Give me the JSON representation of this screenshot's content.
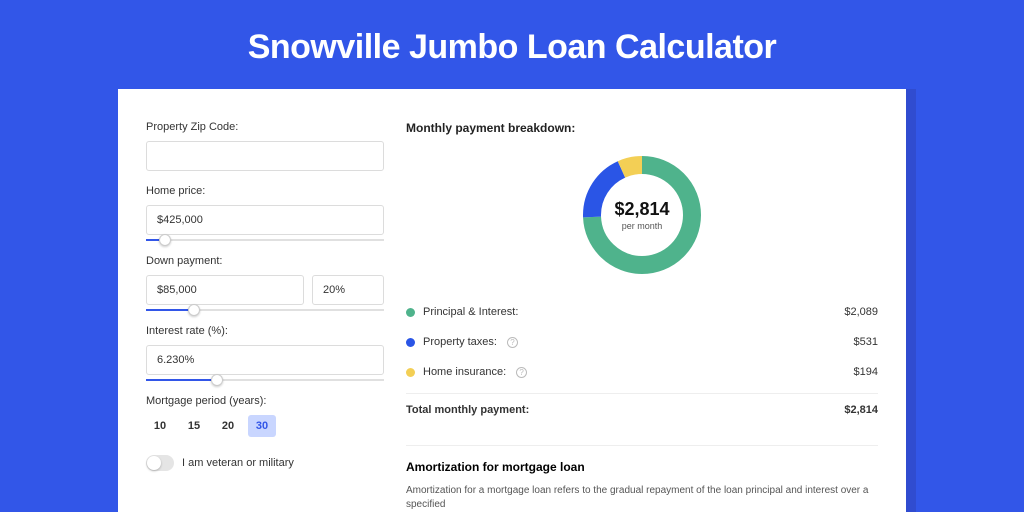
{
  "page": {
    "title": "Snowville Jumbo Loan Calculator",
    "background_color": "#3256e8",
    "stage_shadow_color": "#304cd0"
  },
  "form": {
    "zip": {
      "label": "Property Zip Code:",
      "value": ""
    },
    "home_price": {
      "label": "Home price:",
      "value": "$425,000",
      "slider_pct": 8
    },
    "down_payment": {
      "label": "Down payment:",
      "amount": "$85,000",
      "percent": "20%",
      "slider_pct": 20
    },
    "interest_rate": {
      "label": "Interest rate (%):",
      "value": "6.230%",
      "slider_pct": 30
    },
    "period": {
      "label": "Mortgage period (years):",
      "options": [
        "10",
        "15",
        "20",
        "30"
      ],
      "selected_index": 3
    },
    "veteran": {
      "label": "I am veteran or military",
      "checked": false
    }
  },
  "breakdown": {
    "heading": "Monthly payment breakdown:",
    "center_amount": "$2,814",
    "center_sub": "per month",
    "donut": {
      "background_color": "#ffffff",
      "stroke_width": 18,
      "segments": [
        {
          "key": "principal_interest",
          "label": "Principal & Interest:",
          "value_label": "$2,089",
          "value": 2089,
          "color": "#4fb38c",
          "has_info": false
        },
        {
          "key": "property_taxes",
          "label": "Property taxes:",
          "value_label": "$531",
          "value": 531,
          "color": "#2a55e6",
          "has_info": true
        },
        {
          "key": "home_insurance",
          "label": "Home insurance:",
          "value_label": "$194",
          "value": 194,
          "color": "#f3cf55",
          "has_info": true
        }
      ]
    },
    "total": {
      "label": "Total monthly payment:",
      "value_label": "$2,814"
    }
  },
  "amortization": {
    "heading": "Amortization for mortgage loan",
    "text": "Amortization for a mortgage loan refers to the gradual repayment of the loan principal and interest over a specified"
  },
  "styles": {
    "slider_fill_color": "#3256e8",
    "period_active_bg": "#c9d6ff",
    "period_active_fg": "#3256e8"
  }
}
